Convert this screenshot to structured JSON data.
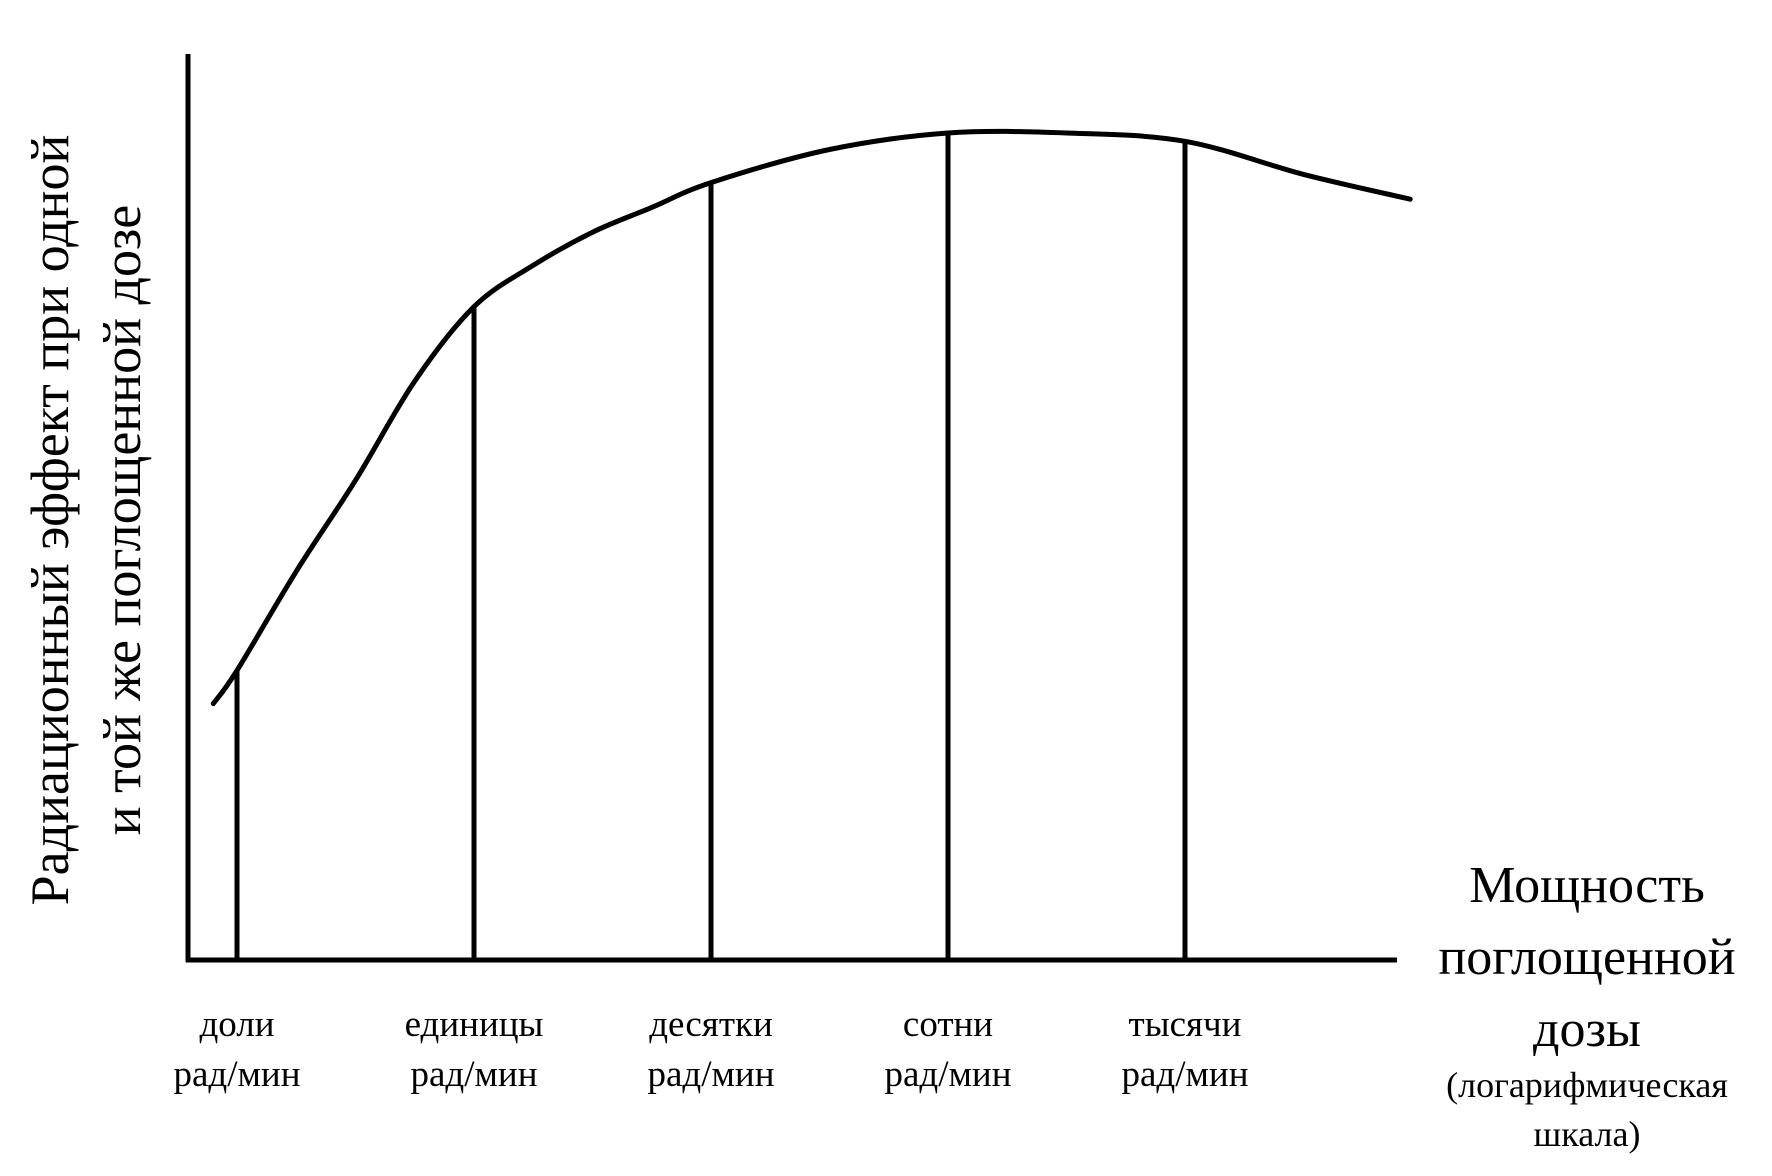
{
  "chart_data": {
    "type": "line",
    "title": "",
    "ylabel": [
      "Радиационный эффект при одной",
      "и той же поглощенной дозе"
    ],
    "xlabel": [
      "Мощность",
      "поглощенной",
      "дозы",
      "(логарифмическая",
      "шкала)"
    ],
    "x_scale": "log",
    "categories": [
      [
        "доли",
        "рад/мин"
      ],
      [
        "единицы",
        "рад/мин"
      ],
      [
        "десятки",
        "рад/мин"
      ],
      [
        "сотни",
        "рад/мин"
      ],
      [
        "тысячи",
        "рад/мин"
      ]
    ],
    "xlim": [
      -0.1,
      4.95
    ],
    "ylim": [
      0,
      1
    ],
    "series": [
      {
        "values": [
          {
            "x": -0.1,
            "y": 0.31
          },
          {
            "x": 0.0,
            "y": 0.35
          },
          {
            "x": 0.25,
            "y": 0.47
          },
          {
            "x": 0.5,
            "y": 0.58
          },
          {
            "x": 0.75,
            "y": 0.7
          },
          {
            "x": 1.0,
            "y": 0.79
          },
          {
            "x": 1.25,
            "y": 0.84
          },
          {
            "x": 1.5,
            "y": 0.88
          },
          {
            "x": 1.75,
            "y": 0.91
          },
          {
            "x": 2.0,
            "y": 0.94
          },
          {
            "x": 2.5,
            "y": 0.98
          },
          {
            "x": 3.0,
            "y": 1.0
          },
          {
            "x": 3.5,
            "y": 1.0
          },
          {
            "x": 4.0,
            "y": 0.99
          },
          {
            "x": 4.5,
            "y": 0.95
          },
          {
            "x": 4.95,
            "y": 0.92
          }
        ]
      }
    ],
    "drop_lines": [
      {
        "x": 0,
        "y": 0.35
      },
      {
        "x": 1,
        "y": 0.79
      },
      {
        "x": 2,
        "y": 0.94
      },
      {
        "x": 3,
        "y": 1.0
      },
      {
        "x": 4,
        "y": 0.99
      }
    ],
    "grid": false,
    "legend": "none",
    "line_color": "#000000",
    "background": "#ffffff"
  }
}
